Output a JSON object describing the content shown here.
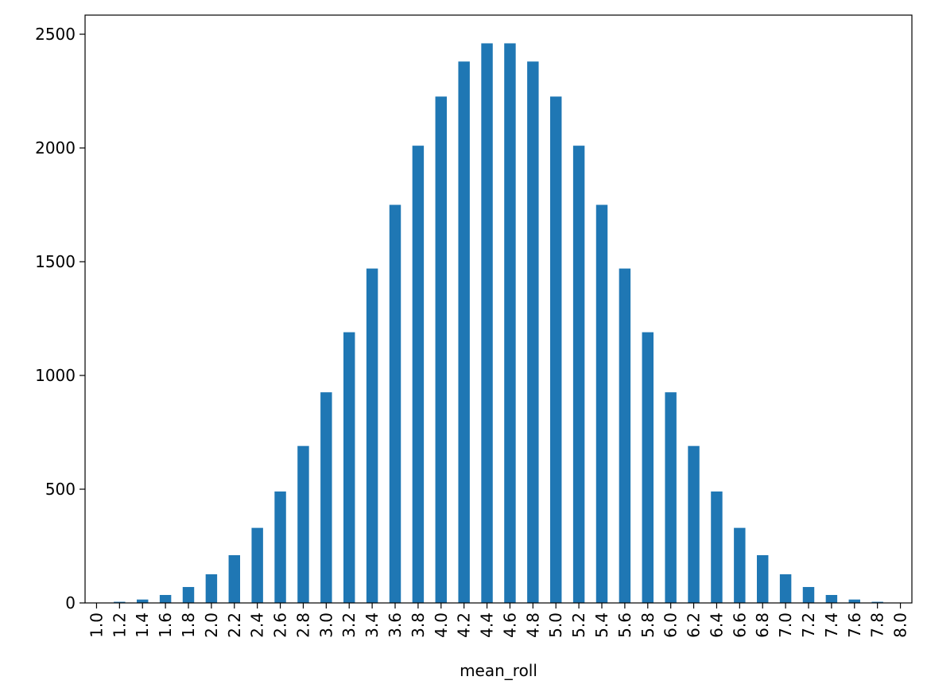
{
  "chart_data": {
    "type": "bar",
    "x_label": "mean_roll",
    "categories": [
      "1.0",
      "1.2",
      "1.4",
      "1.6",
      "1.8",
      "2.0",
      "2.2",
      "2.4",
      "2.6",
      "2.8",
      "3.0",
      "3.2",
      "3.4",
      "3.6",
      "3.8",
      "4.0",
      "4.2",
      "4.4",
      "4.6",
      "4.8",
      "5.0",
      "5.2",
      "5.4",
      "5.6",
      "5.8",
      "6.0",
      "6.2",
      "6.4",
      "6.6",
      "6.8",
      "7.0",
      "7.2",
      "7.4",
      "7.6",
      "7.8",
      "8.0"
    ],
    "values": [
      1,
      5,
      15,
      35,
      70,
      126,
      210,
      330,
      490,
      690,
      926,
      1190,
      1470,
      1750,
      2010,
      2226,
      2380,
      2460,
      2460,
      2380,
      2226,
      2010,
      1750,
      1470,
      1190,
      926,
      690,
      490,
      330,
      210,
      126,
      70,
      35,
      15,
      5,
      1
    ],
    "color": "#1f77b4",
    "ylim": [
      0,
      2584
    ],
    "yticks": [
      0,
      500,
      1000,
      1500,
      2000,
      2500
    ],
    "grid": false
  }
}
